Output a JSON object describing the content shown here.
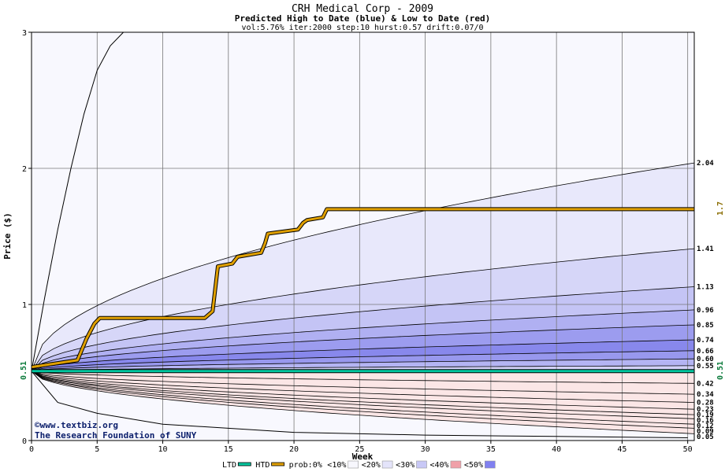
{
  "chart_data": {
    "type": "area",
    "title": "CRH Medical Corp - 2009",
    "subtitle": "Predicted High to Date (blue) &  Low to Date (red)",
    "params": "vol:5.76% iter:2000 step:10 hurst:0.57 drift:0.07/0",
    "xlabel": "Week",
    "ylabel": "Price ($)",
    "xlim": [
      0,
      50.5
    ],
    "ylim": [
      0,
      3
    ],
    "x_ticks": [
      0,
      5,
      10,
      15,
      20,
      25,
      30,
      35,
      40,
      45,
      50
    ],
    "y_ticks": [
      0,
      1,
      2,
      3
    ],
    "start_price": 0.51,
    "start_label": "0.51",
    "final_htd": 1.7,
    "final_htd_label": "1.7",
    "band_labels": [
      "2.04",
      "1.41",
      "1.13",
      "0.96",
      "0.85",
      "0.74",
      "0.66",
      "0.60",
      "0.55",
      "0.42",
      "0.34",
      "0.28",
      "0.23",
      "0.19",
      "0.16",
      "0.12",
      "0.09",
      "0.05"
    ],
    "high_quantiles_end": [
      2.04,
      1.41,
      1.13,
      0.96,
      0.85,
      0.74,
      0.66,
      0.6,
      0.55
    ],
    "low_quantiles_end": [
      0.42,
      0.34,
      0.28,
      0.23,
      0.19,
      0.16,
      0.12,
      0.09,
      0.05
    ],
    "high_envelope": {
      "x": [
        0,
        1,
        2,
        3,
        4,
        5,
        6,
        7
      ],
      "y": [
        0.51,
        1.05,
        1.55,
        2.0,
        2.4,
        2.72,
        2.9,
        3.0
      ]
    },
    "low_envelope": {
      "x": [
        0,
        2,
        5,
        10,
        20,
        30,
        40,
        50
      ],
      "y": [
        0.51,
        0.28,
        0.2,
        0.12,
        0.06,
        0.04,
        0.03,
        0.02
      ]
    },
    "htd_path": {
      "x": [
        0,
        3.5,
        4.2,
        4.8,
        5.2,
        13.2,
        13.8,
        14.2,
        15.3,
        15.7,
        17.5,
        17.8,
        18.0,
        20.3,
        20.7,
        21.0,
        22.2,
        22.5,
        50.5
      ],
      "y": [
        0.54,
        0.59,
        0.75,
        0.86,
        0.9,
        0.9,
        0.95,
        1.28,
        1.3,
        1.35,
        1.38,
        1.45,
        1.52,
        1.55,
        1.6,
        1.62,
        1.64,
        1.7,
        1.7
      ]
    },
    "ltd_value": 0.51,
    "legend": [
      {
        "label": "LTD",
        "color": "#00c8a0"
      },
      {
        "label": "HTD",
        "color": "#e0a000"
      },
      {
        "label": "prob:0%",
        "color": ""
      },
      {
        "label": "<10%",
        "color": "#f7f7fd"
      },
      {
        "label": "<20%",
        "color": "#e4e4fa"
      },
      {
        "label": "<30%",
        "color": "#c8c8f6"
      },
      {
        "label": "<40%",
        "color": "#f0a0a8"
      },
      {
        "label": "<50%",
        "color": "#8080f0"
      }
    ],
    "credit_lines": [
      "©www.textbiz.org",
      "The Research Foundation of SUNY"
    ]
  }
}
